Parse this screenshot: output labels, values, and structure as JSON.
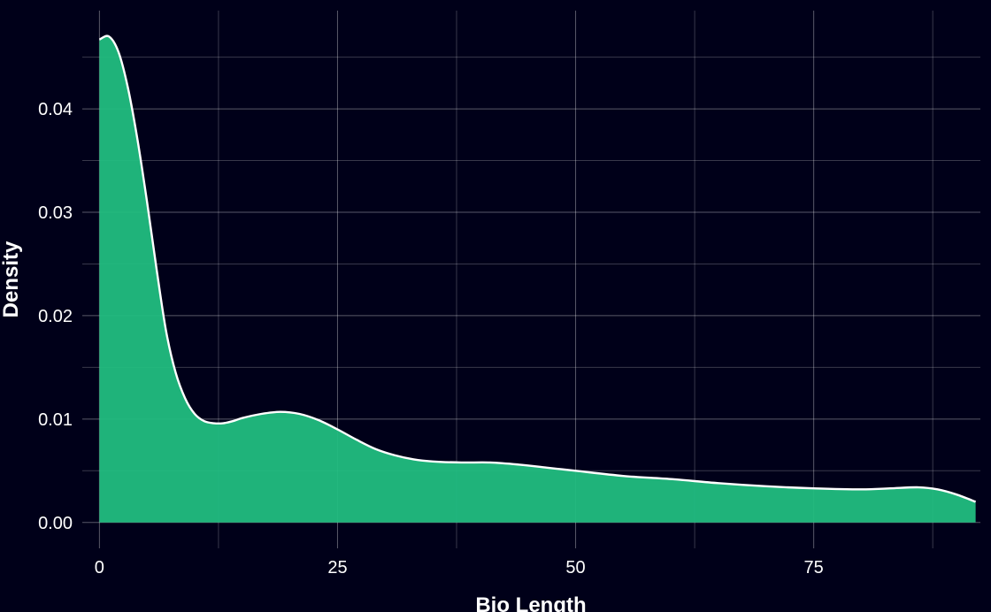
{
  "chart_data": {
    "type": "area",
    "xlabel": "Bio Length",
    "ylabel": "Density",
    "xlim": [
      -1.8,
      92.5
    ],
    "ylim": [
      -0.0025,
      0.0495
    ],
    "x_ticks": [
      0,
      25,
      50,
      75
    ],
    "x_tick_labels": [
      "0",
      "25",
      "50",
      "75"
    ],
    "y_ticks": [
      0.0,
      0.01,
      0.02,
      0.03,
      0.04
    ],
    "y_tick_labels": [
      "0.00",
      "0.01",
      "0.02",
      "0.03",
      "0.04"
    ],
    "grid": true,
    "legend": "none",
    "colors": {
      "background": "#000019",
      "fill": "#21be81",
      "line": "#ffffff"
    },
    "series": [
      {
        "x": [
          0,
          1,
          2,
          3,
          4,
          5,
          6,
          7,
          8,
          9,
          10,
          11,
          12,
          13,
          14,
          15,
          17,
          19,
          21,
          23,
          25,
          27,
          29,
          31,
          33,
          35,
          38,
          41,
          44,
          47,
          50,
          55,
          60,
          65,
          70,
          75,
          80,
          83,
          86,
          88,
          90,
          92
        ],
        "y": [
          0.0467,
          0.047,
          0.0455,
          0.042,
          0.037,
          0.031,
          0.0245,
          0.0185,
          0.0145,
          0.012,
          0.0105,
          0.0098,
          0.0096,
          0.0096,
          0.0098,
          0.0101,
          0.0105,
          0.0107,
          0.0105,
          0.0099,
          0.009,
          0.008,
          0.0071,
          0.0065,
          0.0061,
          0.0059,
          0.0058,
          0.0058,
          0.0056,
          0.0053,
          0.005,
          0.0045,
          0.0042,
          0.0038,
          0.0035,
          0.0033,
          0.0032,
          0.0033,
          0.0034,
          0.0032,
          0.0027,
          0.002
        ]
      }
    ]
  }
}
